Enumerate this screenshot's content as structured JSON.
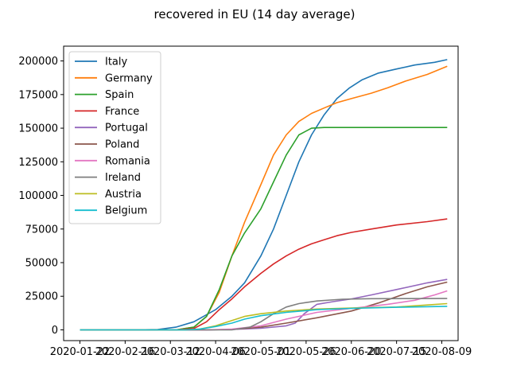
{
  "chart_data": {
    "type": "line",
    "title": "recovered in EU (14 day average)",
    "xlabel": "",
    "ylabel": "",
    "xlim": [
      "2020-01-13",
      "2020-08-18"
    ],
    "ylim": [
      -8000,
      211000
    ],
    "x_ticks": [
      "2020-01-22",
      "2020-02-16",
      "2020-03-12",
      "2020-04-06",
      "2020-05-01",
      "2020-05-26",
      "2020-06-20",
      "2020-07-15",
      "2020-08-09"
    ],
    "y_ticks": [
      0,
      25000,
      50000,
      75000,
      100000,
      125000,
      150000,
      175000,
      200000
    ],
    "legend_position": "top-left",
    "grid": false,
    "series": [
      {
        "name": "Italy",
        "color": "#1f77b4",
        "points": [
          [
            "2020-01-22",
            0
          ],
          [
            "2020-02-20",
            0
          ],
          [
            "2020-03-05",
            200
          ],
          [
            "2020-03-15",
            2000
          ],
          [
            "2020-03-25",
            6000
          ],
          [
            "2020-04-06",
            15000
          ],
          [
            "2020-04-15",
            25000
          ],
          [
            "2020-04-22",
            35000
          ],
          [
            "2020-05-01",
            55000
          ],
          [
            "2020-05-08",
            75000
          ],
          [
            "2020-05-15",
            100000
          ],
          [
            "2020-05-22",
            125000
          ],
          [
            "2020-05-29",
            145000
          ],
          [
            "2020-06-05",
            160000
          ],
          [
            "2020-06-12",
            172000
          ],
          [
            "2020-06-19",
            180000
          ],
          [
            "2020-06-26",
            186000
          ],
          [
            "2020-07-05",
            191000
          ],
          [
            "2020-07-15",
            194000
          ],
          [
            "2020-07-25",
            197000
          ],
          [
            "2020-08-05",
            199000
          ],
          [
            "2020-08-12",
            201000
          ]
        ]
      },
      {
        "name": "Germany",
        "color": "#ff7f0e",
        "points": [
          [
            "2020-01-22",
            0
          ],
          [
            "2020-03-15",
            0
          ],
          [
            "2020-03-25",
            2000
          ],
          [
            "2020-04-01",
            10000
          ],
          [
            "2020-04-08",
            28000
          ],
          [
            "2020-04-15",
            55000
          ],
          [
            "2020-04-22",
            80000
          ],
          [
            "2020-05-01",
            108000
          ],
          [
            "2020-05-08",
            130000
          ],
          [
            "2020-05-15",
            145000
          ],
          [
            "2020-05-22",
            155000
          ],
          [
            "2020-05-29",
            161000
          ],
          [
            "2020-06-05",
            165000
          ],
          [
            "2020-06-12",
            169000
          ],
          [
            "2020-06-20",
            172000
          ],
          [
            "2020-07-01",
            176000
          ],
          [
            "2020-07-10",
            180000
          ],
          [
            "2020-07-20",
            185000
          ],
          [
            "2020-08-01",
            190000
          ],
          [
            "2020-08-12",
            196000
          ]
        ]
      },
      {
        "name": "Spain",
        "color": "#2ca02c",
        "points": [
          [
            "2020-01-22",
            0
          ],
          [
            "2020-03-15",
            0
          ],
          [
            "2020-03-25",
            2000
          ],
          [
            "2020-04-01",
            10000
          ],
          [
            "2020-04-08",
            30000
          ],
          [
            "2020-04-15",
            55000
          ],
          [
            "2020-04-22",
            72000
          ],
          [
            "2020-05-01",
            90000
          ],
          [
            "2020-05-08",
            110000
          ],
          [
            "2020-05-15",
            130000
          ],
          [
            "2020-05-22",
            145000
          ],
          [
            "2020-05-29",
            150000
          ],
          [
            "2020-06-05",
            150500
          ],
          [
            "2020-07-01",
            150500
          ],
          [
            "2020-08-12",
            150500
          ]
        ]
      },
      {
        "name": "France",
        "color": "#d62728",
        "points": [
          [
            "2020-01-22",
            0
          ],
          [
            "2020-03-15",
            0
          ],
          [
            "2020-03-25",
            1000
          ],
          [
            "2020-04-01",
            6000
          ],
          [
            "2020-04-08",
            15000
          ],
          [
            "2020-04-15",
            23000
          ],
          [
            "2020-04-22",
            32000
          ],
          [
            "2020-05-01",
            42000
          ],
          [
            "2020-05-08",
            49000
          ],
          [
            "2020-05-15",
            55000
          ],
          [
            "2020-05-22",
            60000
          ],
          [
            "2020-05-29",
            64000
          ],
          [
            "2020-06-05",
            67000
          ],
          [
            "2020-06-12",
            70000
          ],
          [
            "2020-06-20",
            72500
          ],
          [
            "2020-07-01",
            75000
          ],
          [
            "2020-07-15",
            78000
          ],
          [
            "2020-08-01",
            80500
          ],
          [
            "2020-08-12",
            82500
          ]
        ]
      },
      {
        "name": "Portugal",
        "color": "#9467bd",
        "points": [
          [
            "2020-01-22",
            0
          ],
          [
            "2020-04-01",
            0
          ],
          [
            "2020-04-15",
            300
          ],
          [
            "2020-05-01",
            1200
          ],
          [
            "2020-05-15",
            3000
          ],
          [
            "2020-05-20",
            5000
          ],
          [
            "2020-05-25",
            12000
          ],
          [
            "2020-06-01",
            19000
          ],
          [
            "2020-06-10",
            21000
          ],
          [
            "2020-06-20",
            23000
          ],
          [
            "2020-07-01",
            26000
          ],
          [
            "2020-07-15",
            30000
          ],
          [
            "2020-08-01",
            35000
          ],
          [
            "2020-08-12",
            37500
          ]
        ]
      },
      {
        "name": "Poland",
        "color": "#8c564b",
        "points": [
          [
            "2020-01-22",
            0
          ],
          [
            "2020-04-01",
            0
          ],
          [
            "2020-04-15",
            300
          ],
          [
            "2020-05-01",
            2000
          ],
          [
            "2020-05-15",
            5000
          ],
          [
            "2020-06-01",
            9000
          ],
          [
            "2020-06-20",
            14000
          ],
          [
            "2020-07-05",
            20000
          ],
          [
            "2020-07-20",
            27000
          ],
          [
            "2020-08-01",
            32000
          ],
          [
            "2020-08-12",
            35500
          ]
        ]
      },
      {
        "name": "Romania",
        "color": "#e377c2",
        "points": [
          [
            "2020-01-22",
            0
          ],
          [
            "2020-04-01",
            0
          ],
          [
            "2020-04-15",
            500
          ],
          [
            "2020-05-01",
            3000
          ],
          [
            "2020-05-15",
            8000
          ],
          [
            "2020-06-01",
            13000
          ],
          [
            "2020-06-20",
            16000
          ],
          [
            "2020-07-10",
            19000
          ],
          [
            "2020-07-25",
            22000
          ],
          [
            "2020-08-05",
            26000
          ],
          [
            "2020-08-12",
            29000
          ]
        ]
      },
      {
        "name": "Ireland",
        "color": "#7f7f7f",
        "points": [
          [
            "2020-01-22",
            0
          ],
          [
            "2020-04-15",
            0
          ],
          [
            "2020-04-25",
            2000
          ],
          [
            "2020-05-01",
            6000
          ],
          [
            "2020-05-08",
            12000
          ],
          [
            "2020-05-15",
            17000
          ],
          [
            "2020-05-22",
            19500
          ],
          [
            "2020-06-01",
            21500
          ],
          [
            "2020-06-15",
            22800
          ],
          [
            "2020-07-01",
            23200
          ],
          [
            "2020-08-12",
            23300
          ]
        ]
      },
      {
        "name": "Austria",
        "color": "#bcbd22",
        "points": [
          [
            "2020-01-22",
            0
          ],
          [
            "2020-03-20",
            0
          ],
          [
            "2020-03-28",
            500
          ],
          [
            "2020-04-06",
            3000
          ],
          [
            "2020-04-15",
            7000
          ],
          [
            "2020-04-22",
            10000
          ],
          [
            "2020-05-01",
            12000
          ],
          [
            "2020-05-15",
            14000
          ],
          [
            "2020-06-01",
            15500
          ],
          [
            "2020-06-20",
            16200
          ],
          [
            "2020-07-15",
            17000
          ],
          [
            "2020-08-12",
            19500
          ]
        ]
      },
      {
        "name": "Belgium",
        "color": "#17becf",
        "points": [
          [
            "2020-01-22",
            0
          ],
          [
            "2020-03-20",
            0
          ],
          [
            "2020-03-28",
            500
          ],
          [
            "2020-04-06",
            2500
          ],
          [
            "2020-04-15",
            5000
          ],
          [
            "2020-04-22",
            8000
          ],
          [
            "2020-05-01",
            10500
          ],
          [
            "2020-05-15",
            13000
          ],
          [
            "2020-06-01",
            15000
          ],
          [
            "2020-06-20",
            16000
          ],
          [
            "2020-07-15",
            16800
          ],
          [
            "2020-08-12",
            17500
          ]
        ]
      }
    ]
  }
}
